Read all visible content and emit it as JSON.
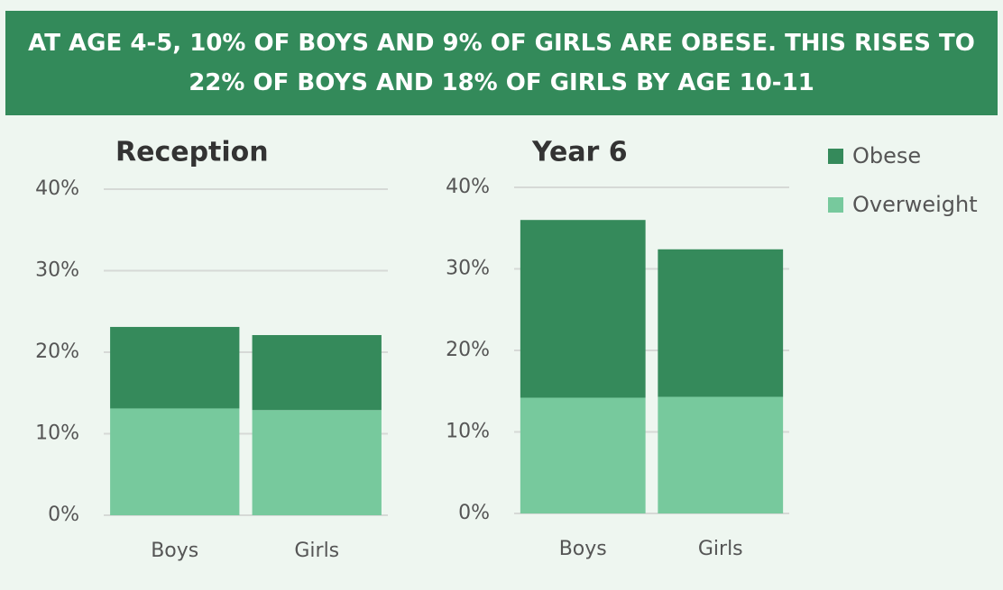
{
  "title": "AT AGE 4-5, 10% OF BOYS AND 9% OF GIRLS ARE OBESE. THIS RISES TO 22% OF BOYS AND 18% OF GIRLS BY AGE 10-11",
  "chart_data": [
    {
      "type": "stacked_bar",
      "title": "Reception",
      "categories": [
        "Boys",
        "Girls"
      ],
      "series": [
        {
          "name": "Overweight",
          "color": "#77c99d",
          "values": [
            13.1,
            12.9
          ]
        },
        {
          "name": "Obese",
          "color": "#358a5b",
          "values": [
            10.0,
            9.2
          ]
        }
      ],
      "ylim": [
        0,
        40
      ],
      "yticks": [
        {
          "value": 0,
          "label": "0%"
        },
        {
          "value": 10,
          "label": "10%"
        },
        {
          "value": 20,
          "label": "20%"
        },
        {
          "value": 30,
          "label": "30%"
        },
        {
          "value": 40,
          "label": "40%"
        }
      ],
      "grid": true
    },
    {
      "type": "stacked_bar",
      "title": "Year 6",
      "categories": [
        "Boys",
        "Girls"
      ],
      "series": [
        {
          "name": "Overweight",
          "color": "#77c99d",
          "values": [
            14.2,
            14.3
          ]
        },
        {
          "name": "Obese",
          "color": "#358a5b",
          "values": [
            21.8,
            18.1
          ]
        }
      ],
      "ylim": [
        0,
        40
      ],
      "yticks": [
        {
          "value": 0,
          "label": "0%"
        },
        {
          "value": 10,
          "label": "10%"
        },
        {
          "value": 20,
          "label": "20%"
        },
        {
          "value": 30,
          "label": "30%"
        },
        {
          "value": 40,
          "label": "40%"
        }
      ],
      "grid": true
    }
  ]
}
